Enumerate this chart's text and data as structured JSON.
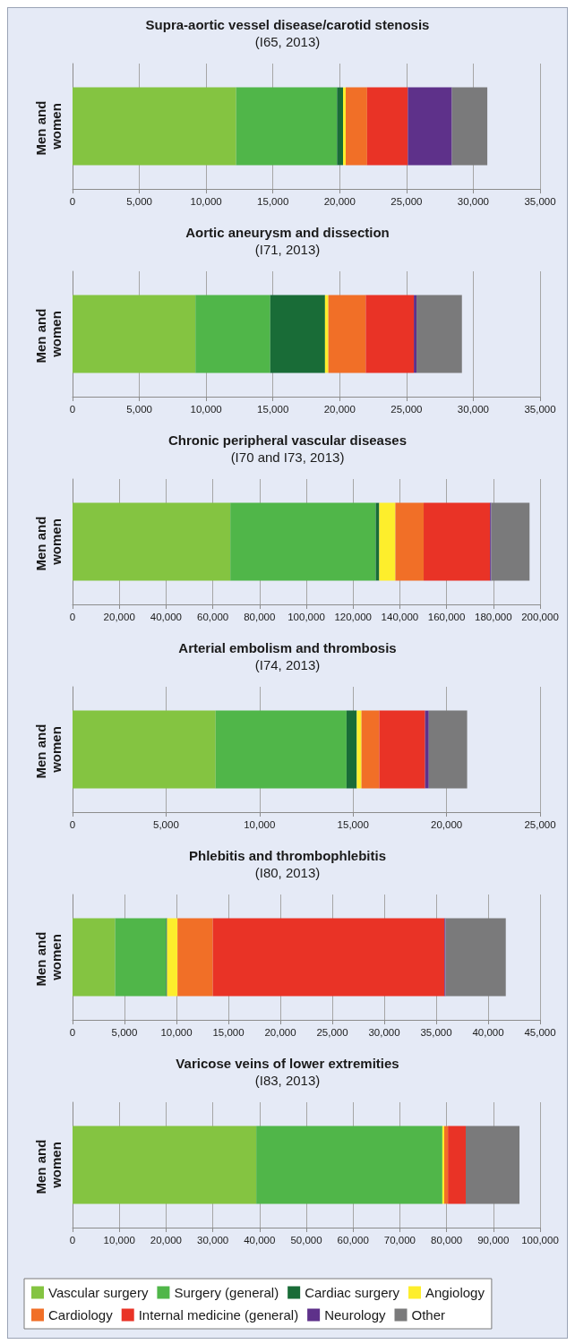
{
  "chart_data": [
    {
      "type": "bar",
      "orientation": "horizontal",
      "stacked": true,
      "title": "Supra-aortic vessel disease/carotid stenosis",
      "subtitle": "(I65, 2013)",
      "categories": [
        "Men and women"
      ],
      "xlim": [
        0,
        35000
      ],
      "xticks": [
        {
          "value": 0,
          "label": "0"
        },
        {
          "value": 5000,
          "label": "5,000"
        },
        {
          "value": 10000,
          "label": "10,000"
        },
        {
          "value": 15000,
          "label": "15,000"
        },
        {
          "value": 20000,
          "label": "20,000"
        },
        {
          "value": 25000,
          "label": "25,000"
        },
        {
          "value": 30000,
          "label": "30,000"
        },
        {
          "value": 35000,
          "label": "35,000"
        }
      ],
      "grid": "x",
      "legend": false,
      "series": [
        {
          "color": "#84c441",
          "values": [
            12250
          ]
        },
        {
          "color": "#50b649",
          "values": [
            7550
          ]
        },
        {
          "color": "#196c37",
          "values": [
            450
          ]
        },
        {
          "color": "#fdee2c",
          "values": [
            200
          ]
        },
        {
          "color": "#f16f27",
          "values": [
            1600
          ]
        },
        {
          "color": "#e93326",
          "values": [
            3050
          ]
        },
        {
          "color": "#5e318a",
          "values": [
            3300
          ]
        },
        {
          "color": "#7a7a7b",
          "values": [
            2650
          ]
        }
      ]
    },
    {
      "type": "bar",
      "orientation": "horizontal",
      "stacked": true,
      "title": "Aortic aneurysm and dissection",
      "subtitle": "(I71, 2013)",
      "categories": [
        "Men and women"
      ],
      "xlim": [
        0,
        35000
      ],
      "xticks": [
        {
          "value": 0,
          "label": "0"
        },
        {
          "value": 5000,
          "label": "5,000"
        },
        {
          "value": 10000,
          "label": "10,000"
        },
        {
          "value": 15000,
          "label": "15,000"
        },
        {
          "value": 20000,
          "label": "20,000"
        },
        {
          "value": 25000,
          "label": "25,000"
        },
        {
          "value": 30000,
          "label": "30,000"
        },
        {
          "value": 35000,
          "label": "35,000"
        }
      ],
      "grid": "x",
      "legend": false,
      "series": [
        {
          "color": "#84c441",
          "values": [
            9200
          ]
        },
        {
          "color": "#50b649",
          "values": [
            5600
          ]
        },
        {
          "color": "#196c37",
          "values": [
            4100
          ]
        },
        {
          "color": "#fdee2c",
          "values": [
            250
          ]
        },
        {
          "color": "#f16f27",
          "values": [
            2800
          ]
        },
        {
          "color": "#e93326",
          "values": [
            3600
          ]
        },
        {
          "color": "#5e318a",
          "values": [
            200
          ]
        },
        {
          "color": "#7a7a7b",
          "values": [
            3400
          ]
        }
      ]
    },
    {
      "type": "bar",
      "orientation": "horizontal",
      "stacked": true,
      "title": "Chronic peripheral vascular diseases",
      "subtitle": "(I70 and I73, 2013)",
      "categories": [
        "Men and women"
      ],
      "xlim": [
        0,
        200000
      ],
      "xticks": [
        {
          "value": 0,
          "label": "0"
        },
        {
          "value": 20000,
          "label": "20,000"
        },
        {
          "value": 40000,
          "label": "40,000"
        },
        {
          "value": 60000,
          "label": "60,000"
        },
        {
          "value": 80000,
          "label": "80,000"
        },
        {
          "value": 100000,
          "label": "100,000"
        },
        {
          "value": 120000,
          "label": "120,000"
        },
        {
          "value": 140000,
          "label": "140,000"
        },
        {
          "value": 160000,
          "label": "160,000"
        },
        {
          "value": 180000,
          "label": "180,000"
        },
        {
          "value": 200000,
          "label": "200,000"
        }
      ],
      "grid": "x",
      "legend": false,
      "series": [
        {
          "color": "#84c441",
          "values": [
            67500
          ]
        },
        {
          "color": "#50b649",
          "values": [
            62200
          ]
        },
        {
          "color": "#196c37",
          "values": [
            1500
          ]
        },
        {
          "color": "#fdee2c",
          "values": [
            6900
          ]
        },
        {
          "color": "#f16f27",
          "values": [
            12100
          ]
        },
        {
          "color": "#e93326",
          "values": [
            28400
          ]
        },
        {
          "color": "#5e318a",
          "values": [
            500
          ]
        },
        {
          "color": "#7a7a7b",
          "values": [
            16400
          ]
        }
      ]
    },
    {
      "type": "bar",
      "orientation": "horizontal",
      "stacked": true,
      "title": "Arterial embolism and thrombosis",
      "subtitle": "(I74, 2013)",
      "categories": [
        "Men and women"
      ],
      "xlim": [
        0,
        25000
      ],
      "xticks": [
        {
          "value": 0,
          "label": "0"
        },
        {
          "value": 5000,
          "label": "5,000"
        },
        {
          "value": 10000,
          "label": "10,000"
        },
        {
          "value": 15000,
          "label": "15,000"
        },
        {
          "value": 20000,
          "label": "20,000"
        },
        {
          "value": 25000,
          "label": "25,000"
        }
      ],
      "grid": "x",
      "legend": false,
      "series": [
        {
          "color": "#84c441",
          "values": [
            7650
          ]
        },
        {
          "color": "#50b649",
          "values": [
            7000
          ]
        },
        {
          "color": "#196c37",
          "values": [
            550
          ]
        },
        {
          "color": "#fdee2c",
          "values": [
            250
          ]
        },
        {
          "color": "#f16f27",
          "values": [
            950
          ]
        },
        {
          "color": "#e93326",
          "values": [
            2450
          ]
        },
        {
          "color": "#5e318a",
          "values": [
            200
          ]
        },
        {
          "color": "#7a7a7b",
          "values": [
            2050
          ]
        }
      ]
    },
    {
      "type": "bar",
      "orientation": "horizontal",
      "stacked": true,
      "title": "Phlebitis and thrombophlebitis",
      "subtitle": "(I80, 2013)",
      "categories": [
        "Men and women"
      ],
      "xlim": [
        0,
        45000
      ],
      "xticks": [
        {
          "value": 0,
          "label": "0"
        },
        {
          "value": 5000,
          "label": "5,000"
        },
        {
          "value": 10000,
          "label": "10,000"
        },
        {
          "value": 15000,
          "label": "15,000"
        },
        {
          "value": 20000,
          "label": "20,000"
        },
        {
          "value": 25000,
          "label": "25,000"
        },
        {
          "value": 30000,
          "label": "30,000"
        },
        {
          "value": 35000,
          "label": "35,000"
        },
        {
          "value": 40000,
          "label": "40,000"
        },
        {
          "value": 45000,
          "label": "45,000"
        }
      ],
      "grid": "x",
      "legend": false,
      "series": [
        {
          "color": "#84c441",
          "values": [
            4100
          ]
        },
        {
          "color": "#50b649",
          "values": [
            4900
          ]
        },
        {
          "color": "#196c37",
          "values": [
            100
          ]
        },
        {
          "color": "#fdee2c",
          "values": [
            1000
          ]
        },
        {
          "color": "#f16f27",
          "values": [
            3400
          ]
        },
        {
          "color": "#e93326",
          "values": [
            22300
          ]
        },
        {
          "color": "#5e318a",
          "values": [
            100
          ]
        },
        {
          "color": "#7a7a7b",
          "values": [
            5800
          ]
        }
      ]
    },
    {
      "type": "bar",
      "orientation": "horizontal",
      "stacked": true,
      "title": "Varicose veins of lower extremities",
      "subtitle": "(I83, 2013)",
      "categories": [
        "Men and women"
      ],
      "xlim": [
        0,
        100000
      ],
      "xticks": [
        {
          "value": 0,
          "label": "0"
        },
        {
          "value": 10000,
          "label": "10,000"
        },
        {
          "value": 20000,
          "label": "20,000"
        },
        {
          "value": 30000,
          "label": "30,000"
        },
        {
          "value": 40000,
          "label": "40,000"
        },
        {
          "value": 50000,
          "label": "50,000"
        },
        {
          "value": 60000,
          "label": "60,000"
        },
        {
          "value": 70000,
          "label": "70,000"
        },
        {
          "value": 80000,
          "label": "80,000"
        },
        {
          "value": 90000,
          "label": "90,000"
        },
        {
          "value": 100000,
          "label": "100,000"
        }
      ],
      "grid": "x",
      "legend": "bottom",
      "series": [
        {
          "name": "Vascular surgery",
          "color": "#84c441",
          "values": [
            39300
          ]
        },
        {
          "name": "Surgery (general)",
          "color": "#50b649",
          "values": [
            39800
          ]
        },
        {
          "name": "Cardiac surgery",
          "color": "#196c37",
          "values": [
            0
          ]
        },
        {
          "name": "Angiology",
          "color": "#fdee2c",
          "values": [
            400
          ]
        },
        {
          "name": "Cardiology",
          "color": "#f16f27",
          "values": [
            800
          ]
        },
        {
          "name": "Internal medicine (general)",
          "color": "#e93326",
          "values": [
            3800
          ]
        },
        {
          "name": "Neurology",
          "color": "#5e318a",
          "values": [
            0
          ]
        },
        {
          "name": "Other",
          "color": "#7a7a7b",
          "values": [
            11500
          ]
        }
      ]
    }
  ]
}
